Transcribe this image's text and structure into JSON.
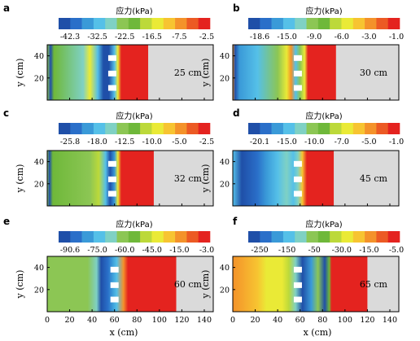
{
  "colorbar": {
    "title": "应力(kPa)",
    "colors": [
      "#1f4fa8",
      "#2a6fc9",
      "#3a9ad8",
      "#55c0e8",
      "#7fd1c4",
      "#8cc654",
      "#6fb83a",
      "#bcd93a",
      "#eaea36",
      "#f7c431",
      "#f4922a",
      "#ec5a24",
      "#e4231f"
    ]
  },
  "axes": {
    "xlabel": "x (cm)",
    "ylabel": "y (cm)",
    "x_ticks": [
      "0",
      "20",
      "40",
      "60",
      "80",
      "100",
      "120",
      "140"
    ],
    "y_ticks": [
      "20",
      "40"
    ]
  },
  "chart_data": [
    {
      "type": "heatmap",
      "panel": "a",
      "depth_label": "25 cm",
      "colorbar_ticks": [
        "-42.3",
        "-32.5",
        "-22.5",
        "-16.5",
        "-7.5",
        "-2.5"
      ],
      "xlim": [
        0,
        148
      ],
      "ylim": [
        0,
        50
      ],
      "grey_region_start_x": 90,
      "anchors_x": 58,
      "anchors_y": [
        11,
        24,
        38
      ],
      "profile": [
        [
          0,
          "#8cc654"
        ],
        [
          3,
          "#1f4fa8"
        ],
        [
          6,
          "#6fb83a"
        ],
        [
          32,
          "#7fd1c4"
        ],
        [
          38,
          "#eaea36"
        ],
        [
          45,
          "#55c0e8"
        ],
        [
          50,
          "#1f4fa8"
        ],
        [
          55,
          "#1f4fa8"
        ],
        [
          60,
          "#55c0e8"
        ],
        [
          63,
          "#eaea36"
        ],
        [
          66,
          "#e4231f"
        ],
        [
          90,
          "#e4231f"
        ]
      ]
    },
    {
      "type": "heatmap",
      "panel": "b",
      "depth_label": "30 cm",
      "colorbar_ticks": [
        "-18.6",
        "-15.0",
        "-9.0",
        "-6.0",
        "-3.0",
        "-1.0"
      ],
      "xlim": [
        0,
        148
      ],
      "ylim": [
        0,
        50
      ],
      "grey_region_start_x": 92,
      "anchors_x": 58,
      "anchors_y": [
        11,
        24,
        38
      ],
      "profile": [
        [
          0,
          "#f4922a"
        ],
        [
          2,
          "#1f4fa8"
        ],
        [
          6,
          "#3a9ad8"
        ],
        [
          22,
          "#55c0e8"
        ],
        [
          40,
          "#8cc654"
        ],
        [
          48,
          "#eaea36"
        ],
        [
          52,
          "#f4922a"
        ],
        [
          56,
          "#55c0e8"
        ],
        [
          60,
          "#8cc654"
        ],
        [
          64,
          "#eaea36"
        ],
        [
          67,
          "#e4231f"
        ],
        [
          92,
          "#e4231f"
        ]
      ]
    },
    {
      "type": "heatmap",
      "panel": "c",
      "depth_label": "32 cm",
      "colorbar_ticks": [
        "-25.8",
        "-18.0",
        "-12.5",
        "-10.0",
        "-5.0",
        "-2.5"
      ],
      "xlim": [
        0,
        148
      ],
      "ylim": [
        0,
        50
      ],
      "grey_region_start_x": 95,
      "anchors_x": 58,
      "anchors_y": [
        11,
        24,
        38
      ],
      "profile": [
        [
          0,
          "#8cc654"
        ],
        [
          2,
          "#1f4fa8"
        ],
        [
          5,
          "#6fb83a"
        ],
        [
          38,
          "#8cc654"
        ],
        [
          46,
          "#bcd93a"
        ],
        [
          52,
          "#55c0e8"
        ],
        [
          56,
          "#1f4fa8"
        ],
        [
          60,
          "#3a9ad8"
        ],
        [
          63,
          "#eaea36"
        ],
        [
          66,
          "#e4231f"
        ],
        [
          95,
          "#e4231f"
        ]
      ]
    },
    {
      "type": "heatmap",
      "panel": "d",
      "depth_label": "45 cm",
      "colorbar_ticks": [
        "-20.1",
        "-15.0",
        "-10.0",
        "-7.0",
        "-5.0",
        "-1.0"
      ],
      "xlim": [
        0,
        148
      ],
      "ylim": [
        0,
        50
      ],
      "grey_region_start_x": 90,
      "anchors_x": 58,
      "anchors_y": [
        11,
        24,
        38
      ],
      "profile": [
        [
          0,
          "#55c0e8"
        ],
        [
          8,
          "#1f4fa8"
        ],
        [
          22,
          "#2a6fc9"
        ],
        [
          30,
          "#3a9ad8"
        ],
        [
          40,
          "#55c0e8"
        ],
        [
          48,
          "#7fd1c4"
        ],
        [
          54,
          "#55c0e8"
        ],
        [
          58,
          "#7fd1c4"
        ],
        [
          62,
          "#f7c431"
        ],
        [
          66,
          "#e4231f"
        ],
        [
          90,
          "#e4231f"
        ]
      ]
    },
    {
      "type": "heatmap",
      "panel": "e",
      "depth_label": "60 cm",
      "colorbar_ticks": [
        "-90.6",
        "-75.0",
        "-60.0",
        "-45.0",
        "-15.0",
        "-3.0"
      ],
      "xlim": [
        0,
        148
      ],
      "ylim": [
        0,
        50
      ],
      "grey_region_start_x": 115,
      "anchors_x": 60,
      "anchors_y": [
        11,
        24,
        38
      ],
      "profile": [
        [
          0,
          "#8cc654"
        ],
        [
          36,
          "#8cc654"
        ],
        [
          44,
          "#7fd1c4"
        ],
        [
          48,
          "#1f4fa8"
        ],
        [
          54,
          "#2a6fc9"
        ],
        [
          58,
          "#3a9ad8"
        ],
        [
          62,
          "#55c0e8"
        ],
        [
          68,
          "#f4922a"
        ],
        [
          72,
          "#e4231f"
        ],
        [
          115,
          "#e4231f"
        ]
      ]
    },
    {
      "type": "heatmap",
      "panel": "f",
      "depth_label": "65 cm",
      "colorbar_ticks": [
        "-250",
        "-150",
        "-50",
        "-30.0",
        "-15.0",
        "-5.0"
      ],
      "xlim": [
        0,
        148
      ],
      "ylim": [
        0,
        50
      ],
      "grey_region_start_x": 120,
      "anchors_x": 58,
      "anchors_y": [
        11,
        24,
        38
      ],
      "profile": [
        [
          0,
          "#f4922a"
        ],
        [
          22,
          "#f7c431"
        ],
        [
          30,
          "#eaea36"
        ],
        [
          44,
          "#eaea36"
        ],
        [
          50,
          "#bcd93a"
        ],
        [
          56,
          "#7fd1c4"
        ],
        [
          62,
          "#1f4fa8"
        ],
        [
          70,
          "#3a9ad8"
        ],
        [
          76,
          "#8cc654"
        ],
        [
          82,
          "#1f4fa8"
        ],
        [
          86,
          "#6fb83a"
        ],
        [
          88,
          "#e4231f"
        ],
        [
          120,
          "#e4231f"
        ]
      ]
    }
  ]
}
